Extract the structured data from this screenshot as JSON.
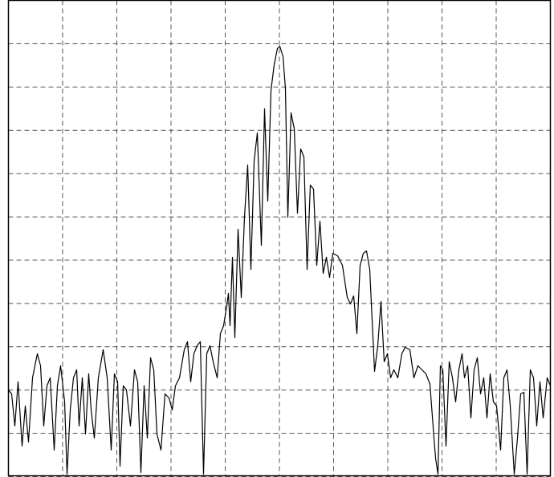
{
  "chart_data": {
    "type": "line",
    "x": [
      0,
      4,
      8,
      12,
      17,
      21,
      25,
      30,
      36,
      40,
      44,
      48,
      52,
      57,
      61,
      65,
      70,
      73,
      77,
      81,
      85,
      88,
      92,
      96,
      100,
      103,
      107,
      112,
      118,
      123,
      128,
      132,
      136,
      139,
      143,
      147,
      152,
      157,
      161,
      165,
      169,
      173,
      177,
      181,
      185,
      190,
      195,
      200,
      204,
      208,
      213,
      219,
      223,
      227,
      231,
      235,
      239,
      243,
      247,
      251,
      255,
      260,
      264,
      268,
      272,
      274,
      276,
      279,
      282,
      286,
      290,
      294,
      298,
      302,
      306,
      310,
      315,
      319,
      323,
      327,
      331,
      335,
      338,
      342,
      345,
      348,
      352,
      356,
      360,
      364,
      368,
      372,
      376,
      380,
      384,
      388,
      392,
      396,
      400,
      404,
      410,
      416,
      422,
      426,
      430,
      434,
      438,
      442,
      446,
      450,
      456,
      460,
      464,
      468,
      472,
      476,
      480,
      485,
      490,
      494,
      500,
      505,
      510,
      515,
      520,
      525,
      530,
      532,
      535,
      538,
      541,
      545,
      549,
      553,
      557,
      561,
      565,
      568,
      572,
      576,
      580,
      584,
      588,
      592,
      596,
      600,
      604,
      608,
      613,
      617,
      621,
      625,
      630,
      634,
      638,
      642,
      646,
      650,
      654,
      658,
      662,
      666,
      671,
      675
    ],
    "values": [
      108,
      103,
      63,
      118,
      38,
      88,
      43,
      123,
      153,
      138,
      63,
      113,
      123,
      33,
      113,
      138,
      93,
      3,
      83,
      123,
      133,
      63,
      123,
      53,
      128,
      83,
      48,
      123,
      158,
      123,
      33,
      128,
      118,
      13,
      113,
      108,
      63,
      133,
      118,
      5,
      113,
      48,
      148,
      133,
      53,
      33,
      103,
      98,
      83,
      113,
      123,
      158,
      168,
      118,
      153,
      163,
      168,
      3,
      153,
      163,
      143,
      123,
      178,
      188,
      213,
      228,
      188,
      273,
      173,
      308,
      223,
      323,
      388,
      258,
      393,
      428,
      288,
      458,
      343,
      481,
      513,
      533,
      536,
      523,
      483,
      323,
      453,
      433,
      328,
      408,
      398,
      258,
      363,
      358,
      263,
      318,
      253,
      273,
      248,
      278,
      275,
      263,
      223,
      215,
      225,
      178,
      263,
      278,
      281,
      258,
      131,
      163,
      218,
      143,
      153,
      123,
      133,
      123,
      153,
      161,
      158,
      123,
      138,
      133,
      128,
      115,
      48,
      23,
      3,
      138,
      133,
      38,
      143,
      123,
      93,
      133,
      153,
      123,
      138,
      73,
      133,
      148,
      103,
      123,
      73,
      128,
      93,
      88,
      33,
      123,
      133,
      88,
      3,
      48,
      103,
      105,
      3,
      133,
      123,
      63,
      118,
      73,
      123,
      113
    ],
    "color": "#000000",
    "xlim": [
      0,
      675
    ],
    "xticks": [
      0,
      67.5,
      135,
      202.5,
      270,
      337.5,
      405,
      472.5,
      540,
      607.5,
      675
    ],
    "ylim": [
      0,
      593
    ],
    "yticks": [
      0,
      53.9,
      107.8,
      161.7,
      215.6,
      269.5,
      323.4,
      377.3,
      431.2,
      485.1,
      539,
      593
    ],
    "grid": true
  }
}
